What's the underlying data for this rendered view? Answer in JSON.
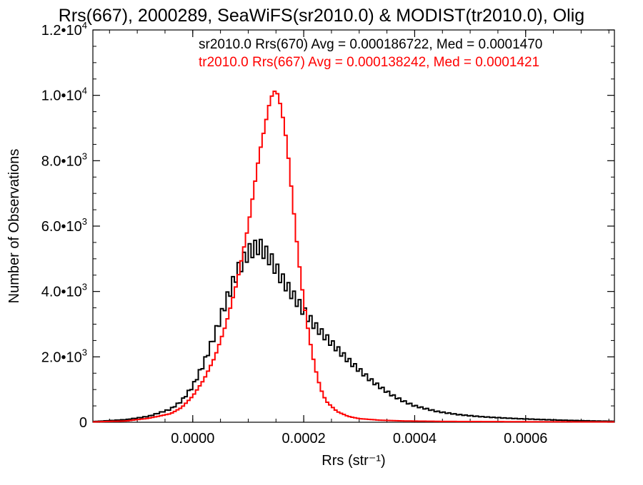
{
  "chart_data": {
    "type": "line",
    "title": "Rrs(667), 2000289, SeaWiFS(sr2010.0) & MODIST(tr2010.0), Olig",
    "xlabel": "Rrs (str⁻¹)",
    "ylabel": "Number of Observations",
    "xlim": [
      -0.00018,
      0.00076
    ],
    "ylim": [
      0,
      12000
    ],
    "x_ticks": [
      0.0,
      0.0002,
      0.0004,
      0.0006
    ],
    "x_tick_labels": [
      "0.0000",
      "0.0002",
      "0.0004",
      "0.0006"
    ],
    "y_ticks": [
      0,
      2000,
      4000,
      6000,
      8000,
      10000,
      12000
    ],
    "y_tick_labels": [
      {
        "mant": "0",
        "exp": ""
      },
      {
        "mant": "2.0•1",
        "exp": "3"
      },
      {
        "mant": "4.0•1",
        "exp": "3"
      },
      {
        "mant": "6.0•1",
        "exp": "3"
      },
      {
        "mant": "8.0•1",
        "exp": "3"
      },
      {
        "mant": "1.0•1",
        "exp": "4"
      },
      {
        "mant": "1.2•1",
        "exp": "4"
      }
    ],
    "grid": false,
    "series": [
      {
        "label": "sr2010.0 Rrs(670) Avg = 0.000186722, Med = 0.0001470",
        "color": "#000000",
        "profile": [
          [
            -0.00018,
            20
          ],
          [
            -0.00012,
            80
          ],
          [
            -8e-05,
            180
          ],
          [
            -4e-05,
            400
          ],
          [
            -2e-05,
            650
          ],
          [
            0.0,
            1100
          ],
          [
            2e-05,
            1800
          ],
          [
            4e-05,
            2700
          ],
          [
            6e-05,
            3700
          ],
          [
            8e-05,
            4600
          ],
          [
            0.0001,
            5200
          ],
          [
            0.00012,
            5400
          ],
          [
            0.00014,
            5000
          ],
          [
            0.00016,
            4400
          ],
          [
            0.00018,
            3900
          ],
          [
            0.0002,
            3400
          ],
          [
            0.00022,
            2950
          ],
          [
            0.00024,
            2600
          ],
          [
            0.00026,
            2250
          ],
          [
            0.00028,
            1900
          ],
          [
            0.0003,
            1600
          ],
          [
            0.00032,
            1300
          ],
          [
            0.00034,
            1050
          ],
          [
            0.00036,
            820
          ],
          [
            0.00038,
            640
          ],
          [
            0.0004,
            500
          ],
          [
            0.00044,
            330
          ],
          [
            0.00048,
            230
          ],
          [
            0.00052,
            170
          ],
          [
            0.00056,
            130
          ],
          [
            0.0006,
            100
          ],
          [
            0.00066,
            65
          ],
          [
            0.00072,
            40
          ],
          [
            0.00076,
            30
          ]
        ]
      },
      {
        "label": "tr2010.0 Rrs(667) Avg = 0.000138242, Med = 0.0001421",
        "color": "#ff0000",
        "profile": [
          [
            -0.00018,
            10
          ],
          [
            -0.00012,
            40
          ],
          [
            -8e-05,
            120
          ],
          [
            -4e-05,
            260
          ],
          [
            -2e-05,
            450
          ],
          [
            0.0,
            800
          ],
          [
            2e-05,
            1300
          ],
          [
            4e-05,
            2000
          ],
          [
            6e-05,
            3000
          ],
          [
            8e-05,
            4300
          ],
          [
            0.0001,
            6000
          ],
          [
            0.00012,
            8200
          ],
          [
            0.00014,
            9900
          ],
          [
            0.00015,
            10200
          ],
          [
            0.00016,
            9600
          ],
          [
            0.00017,
            8500
          ],
          [
            0.00018,
            6800
          ],
          [
            0.00019,
            5100
          ],
          [
            0.0002,
            3700
          ],
          [
            0.00021,
            2600
          ],
          [
            0.00022,
            1700
          ],
          [
            0.00023,
            1050
          ],
          [
            0.00024,
            650
          ],
          [
            0.00026,
            330
          ],
          [
            0.00028,
            180
          ],
          [
            0.0003,
            110
          ],
          [
            0.00034,
            60
          ],
          [
            0.00038,
            40
          ],
          [
            0.00045,
            25
          ],
          [
            0.0006,
            15
          ],
          [
            0.00076,
            10
          ]
        ]
      }
    ]
  }
}
